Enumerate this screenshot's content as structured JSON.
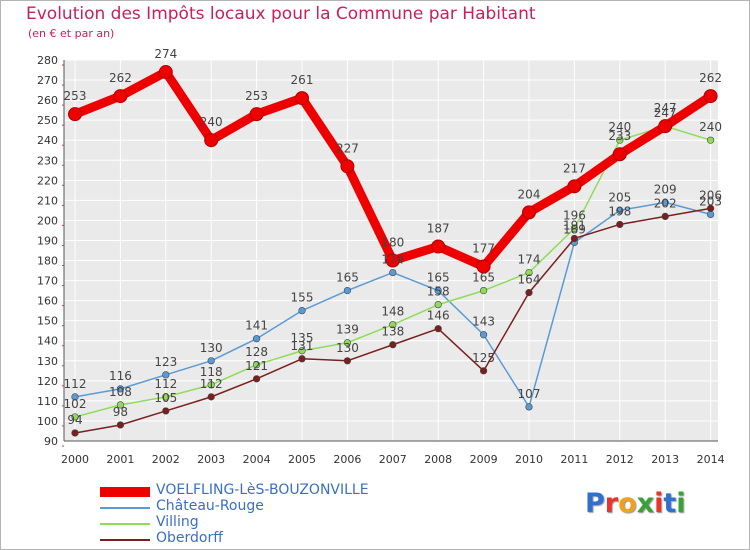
{
  "title": "Evolution des Impôts locaux pour la Commune par Habitant",
  "subtitle": "(en € et par an)",
  "logo": {
    "letters": [
      "P",
      "r",
      "o",
      "x",
      "i",
      "t",
      "i"
    ],
    "colors": [
      "#2f6fd0",
      "#e8342a",
      "#f0a21a",
      "#3aa136",
      "#e8342a",
      "#2f6fd0",
      "#3aa136"
    ]
  },
  "chart_data": {
    "type": "line",
    "title": "Evolution des Impôts locaux pour la Commune par Habitant",
    "ylabel": "(en € et par an)",
    "xlabel": "",
    "ylim": [
      90,
      280
    ],
    "yticks": [
      90,
      100,
      110,
      120,
      130,
      140,
      150,
      160,
      170,
      180,
      190,
      200,
      210,
      220,
      230,
      240,
      250,
      260,
      270,
      280
    ],
    "grid": true,
    "legend_position": "bottom-left",
    "categories": [
      "2000",
      "2001",
      "2002",
      "2003",
      "2004",
      "2005",
      "2006",
      "2007",
      "2008",
      "2009",
      "2010",
      "2011",
      "2012",
      "2013",
      "2014"
    ],
    "series": [
      {
        "name": "VOELFLING-LèS-BOUZONVILLE",
        "color": "#ee0000",
        "values": [
          253,
          262,
          274,
          240,
          253,
          261,
          227,
          180,
          187,
          177,
          204,
          217,
          233,
          247,
          262
        ]
      },
      {
        "name": "Château-Rouge",
        "color": "#5b9bd5",
        "values": [
          112,
          116,
          123,
          130,
          141,
          155,
          165,
          174,
          165,
          143,
          107,
          189,
          205,
          209,
          203
        ]
      },
      {
        "name": "Villing",
        "color": "#8fdc5a",
        "values": [
          102,
          108,
          112,
          118,
          128,
          135,
          139,
          148,
          158,
          165,
          174,
          196,
          240,
          247,
          240
        ]
      },
      {
        "name": "Oberdorff",
        "color": "#7b1f1f",
        "values": [
          94,
          98,
          105,
          112,
          121,
          131,
          130,
          138,
          146,
          125,
          164,
          191,
          198,
          202,
          206
        ]
      }
    ]
  }
}
